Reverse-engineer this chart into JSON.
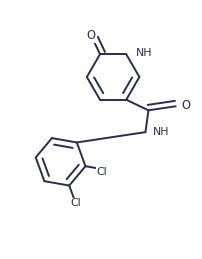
{
  "bg_color": "#ffffff",
  "line_color": "#2b2b4e",
  "lw": 1.4,
  "fs": 7.8,
  "dbo": 0.03,
  "pcx": 0.56,
  "pcy": 0.76,
  "pr": 0.13,
  "bcx": 0.3,
  "bcy": 0.34,
  "br": 0.125,
  "amide_C": [
    0.735,
    0.595
  ],
  "amide_O": [
    0.87,
    0.615
  ],
  "amide_N": [
    0.72,
    0.487
  ]
}
